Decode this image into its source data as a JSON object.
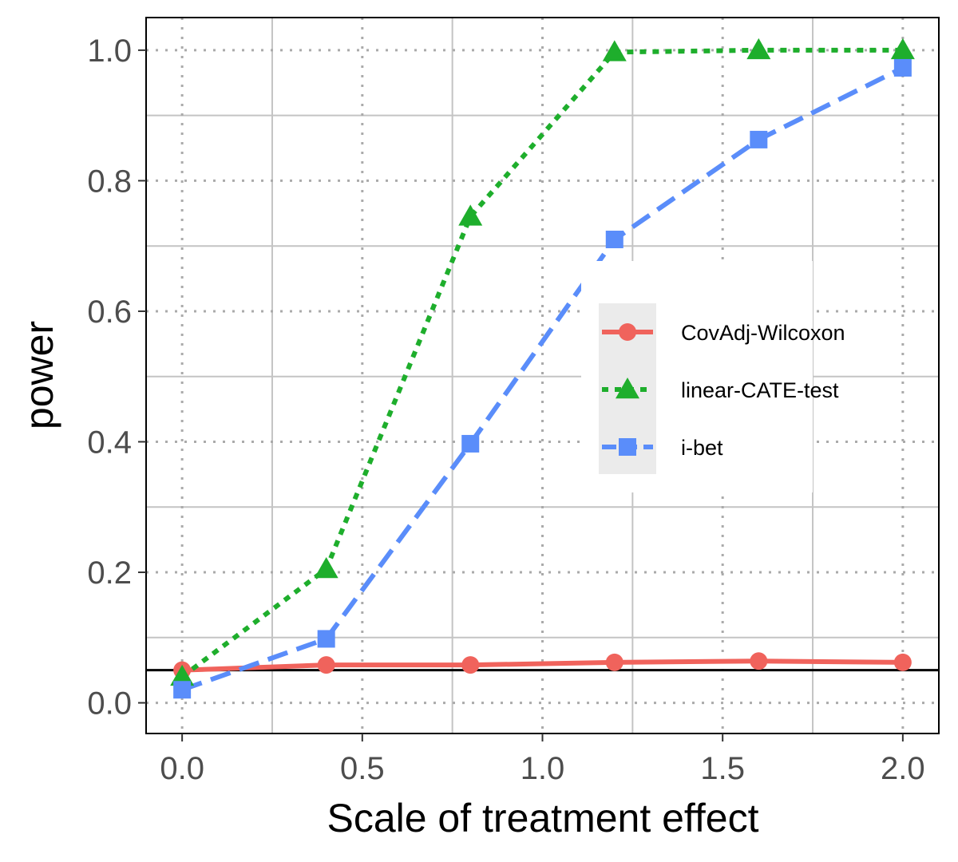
{
  "chart_data": {
    "type": "line",
    "title": "",
    "xlabel": "Scale of treatment effect",
    "ylabel": "power",
    "xlim": [
      -0.1,
      2.1
    ],
    "ylim": [
      -0.047,
      1.05
    ],
    "x_ticks": [
      0.0,
      0.5,
      1.0,
      1.5,
      2.0
    ],
    "x_tick_labels": [
      "0.0",
      "0.5",
      "1.0",
      "1.5",
      "2.0"
    ],
    "y_ticks": [
      0.0,
      0.2,
      0.4,
      0.6,
      0.8,
      1.0
    ],
    "y_tick_labels": [
      "0.0",
      "0.2",
      "0.4",
      "0.6",
      "0.8",
      "1.0"
    ],
    "x_minor_gridlines": [
      0.25,
      0.75,
      1.25,
      1.75
    ],
    "y_minor_gridlines": [
      0.1,
      0.3,
      0.5,
      0.7,
      0.9
    ],
    "reference_line": 0.05,
    "x": [
      0.0,
      0.4,
      0.8,
      1.2,
      1.6,
      2.0
    ],
    "series": [
      {
        "name": "CovAdj-Wilcoxon",
        "values": [
          0.05,
          0.058,
          0.058,
          0.062,
          0.064,
          0.062
        ],
        "color": "#f0635c",
        "marker": "circle",
        "dash": "solid"
      },
      {
        "name": "linear-CATE-test",
        "values": [
          0.04,
          0.205,
          0.745,
          0.997,
          1.0,
          1.0
        ],
        "color": "#1eae2c",
        "marker": "triangle",
        "dash": "dotted"
      },
      {
        "name": "i-bet",
        "values": [
          0.02,
          0.098,
          0.397,
          0.71,
          0.863,
          0.973
        ],
        "color": "#5a8dfa",
        "marker": "square",
        "dash": "dashed"
      }
    ],
    "legend": {
      "position": "center-right",
      "entries": [
        "CovAdj-Wilcoxon",
        "linear-CATE-test",
        "i-bet"
      ]
    },
    "grid": true
  }
}
